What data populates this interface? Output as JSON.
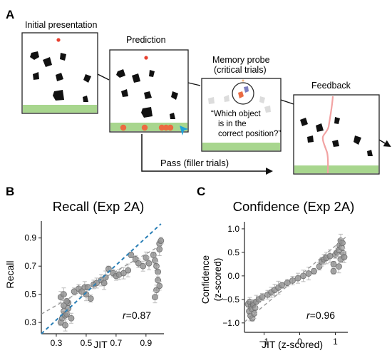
{
  "panel_a": {
    "label": "A",
    "steps": [
      {
        "title": "Initial presentation"
      },
      {
        "title": "Prediction"
      },
      {
        "title_line1": "Memory probe",
        "title_line2": "(critical trials)",
        "question_lines": [
          "“Which object",
          "is in the",
          "correct position?”"
        ]
      },
      {
        "title": "Feedback"
      }
    ],
    "pass_label": "Pass (filler trials)"
  },
  "chart_data": [
    {
      "panel_label": "B",
      "type": "scatter",
      "title": "Recall (Exp 2A)",
      "xlabel": "JIT",
      "ylabel": "Recall",
      "xticks": [
        "0.3",
        "0.5",
        "0.7",
        "0.9"
      ],
      "yticks": [
        "0.3",
        "0.5",
        "0.7",
        "0.9"
      ],
      "xlim": [
        0.2,
        1.02
      ],
      "ylim": [
        0.22,
        1.02
      ],
      "annotation": {
        "var": "r",
        "value": "=0.87"
      },
      "points": {
        "x": [
          0.33,
          0.34,
          0.35,
          0.35,
          0.36,
          0.36,
          0.37,
          0.38,
          0.38,
          0.4,
          0.33,
          0.35,
          0.37,
          0.42,
          0.45,
          0.47,
          0.49,
          0.5,
          0.51,
          0.53,
          0.55,
          0.57,
          0.6,
          0.63,
          0.65,
          0.68,
          0.7,
          0.72,
          0.75,
          0.78,
          0.8,
          0.83,
          0.85,
          0.88,
          0.9,
          0.92,
          0.95,
          0.96,
          0.97,
          0.98,
          0.98,
          0.99,
          0.99,
          1.0,
          0.99,
          0.97,
          0.96,
          0.62
        ],
        "y": [
          0.3,
          0.33,
          0.38,
          0.42,
          0.28,
          0.35,
          0.36,
          0.4,
          0.44,
          0.33,
          0.48,
          0.5,
          0.45,
          0.52,
          0.54,
          0.52,
          0.55,
          0.5,
          0.55,
          0.47,
          0.57,
          0.58,
          0.6,
          0.62,
          0.68,
          0.65,
          0.63,
          0.64,
          0.65,
          0.67,
          0.78,
          0.75,
          0.72,
          0.7,
          0.76,
          0.72,
          0.78,
          0.74,
          0.7,
          0.66,
          0.6,
          0.82,
          0.86,
          0.88,
          0.56,
          0.53,
          0.48,
          0.58
        ]
      },
      "fit_lines": [
        {
          "style": "dashed",
          "color": "#2a7fb6",
          "x": [
            0.2,
            1.0
          ],
          "y": [
            0.22,
            1.0
          ]
        },
        {
          "style": "dashed",
          "color": "#9a9a9a",
          "x": [
            0.2,
            1.02
          ],
          "y": [
            0.36,
            0.86
          ]
        }
      ]
    },
    {
      "panel_label": "C",
      "type": "scatter",
      "title": "Confidence (Exp 2A)",
      "xlabel": "JIT (z-scored)",
      "ylabel_line1": "Confidence",
      "ylabel_line2": "(z-scored)",
      "xticks": [
        "−1",
        "0",
        "1"
      ],
      "yticks": [
        "1.0",
        "0.5",
        "0.0",
        "−0.5",
        "−1.0"
      ],
      "xlim": [
        -1.55,
        1.35
      ],
      "ylim": [
        -1.2,
        1.15
      ],
      "annotation": {
        "var": "r",
        "value": "=0.96"
      },
      "points": {
        "x": [
          -1.45,
          -1.42,
          -1.4,
          -1.38,
          -1.36,
          -1.35,
          -1.33,
          -1.31,
          -1.3,
          -1.28,
          -1.25,
          -1.22,
          -1.15,
          -1.05,
          -0.9,
          -0.8,
          -0.7,
          -0.6,
          -0.5,
          -0.35,
          -0.2,
          -0.05,
          0.1,
          0.25,
          0.4,
          0.55,
          0.62,
          0.68,
          0.75,
          0.85,
          0.95,
          1.0,
          1.05,
          1.1,
          1.12,
          1.15,
          1.15,
          1.18,
          1.2,
          1.22,
          1.25,
          1.1,
          0.95
        ],
        "y": [
          -0.6,
          -0.75,
          -0.55,
          -0.85,
          -0.65,
          -0.7,
          -0.9,
          -0.58,
          -0.62,
          -0.8,
          -0.68,
          -0.55,
          -0.5,
          -0.45,
          -0.4,
          -0.35,
          -0.3,
          -0.25,
          -0.2,
          -0.15,
          -0.1,
          -0.05,
          0.0,
          0.05,
          0.1,
          0.2,
          0.3,
          0.35,
          0.38,
          0.42,
          0.25,
          0.45,
          0.5,
          0.55,
          0.65,
          0.75,
          0.35,
          0.6,
          0.7,
          0.48,
          0.4,
          0.2,
          0.1
        ]
      },
      "fit_lines": [
        {
          "style": "dashed",
          "color": "#9a9a9a",
          "x": [
            -1.55,
            1.35
          ],
          "y": [
            -0.98,
            0.86
          ]
        }
      ]
    }
  ]
}
